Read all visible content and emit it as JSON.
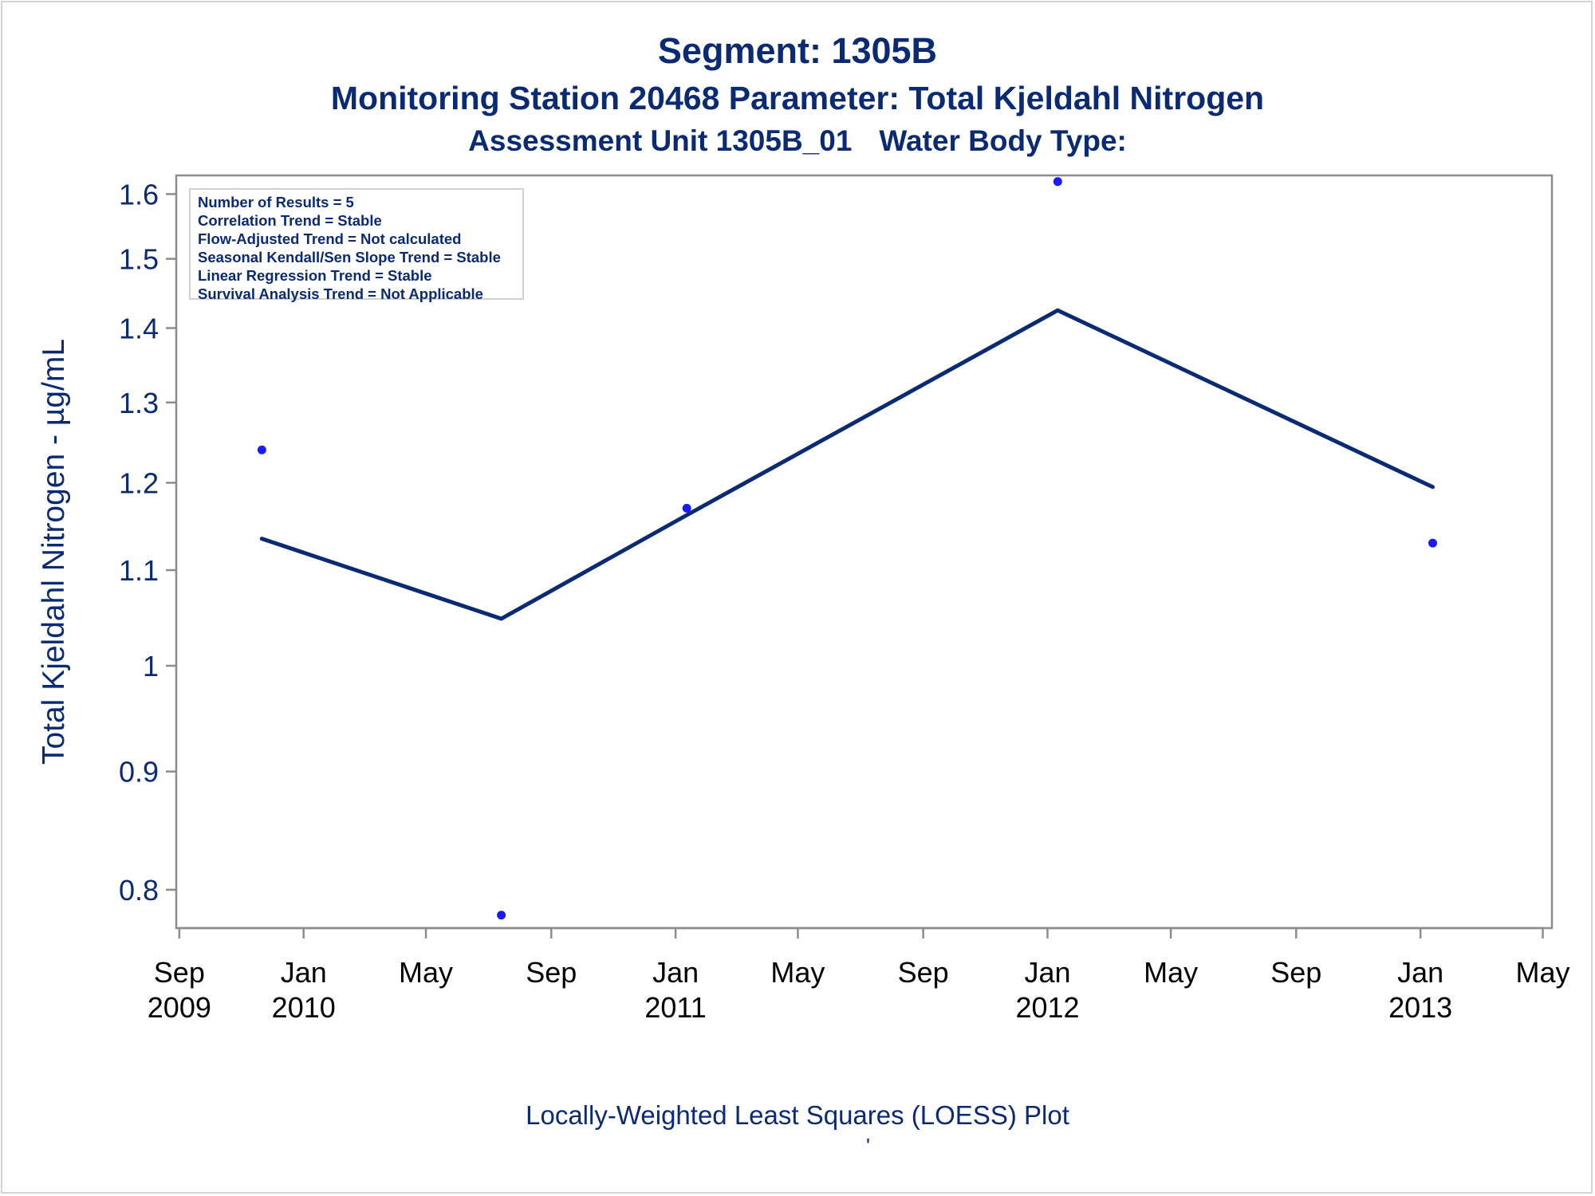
{
  "title": "Segment: 1305B",
  "subtitle": "Monitoring Station 20468 Parameter: Total Kjeldahl Nitrogen",
  "subtitle2_left": "Assessment Unit 1305B_01",
  "subtitle2_right": "Water Body Type:",
  "footnote": "Locally-Weighted Least Squares (LOESS) Plot",
  "footnote_mark": "'",
  "stats": [
    "Number of Results = 5",
    "Correlation Trend = Stable",
    "Flow-Adjusted Trend = Not calculated",
    "Seasonal Kendall/Sen Slope Trend = Stable",
    "Linear Regression Trend = Stable",
    "Survival Analysis Trend = Not Applicable"
  ],
  "colors": {
    "text": "#0a2a74",
    "points": "#1a1aff",
    "loess_line": "#0a2a74",
    "axis": "#8c8c8c"
  },
  "chart_data": {
    "type": "scatter",
    "ylabel": "Total Kjeldahl Nitrogen -  µg/mL",
    "xlabel": "",
    "yscale": "log",
    "ylim": [
      0.77,
      1.63
    ],
    "xlim": [
      "2009-08-29",
      "2013-05-10"
    ],
    "yticks": [
      0.8,
      0.9,
      1,
      1.1,
      1.2,
      1.3,
      1.4,
      1.5,
      1.6
    ],
    "yticklabels": [
      "0.8",
      "0.9",
      "1",
      "1.1",
      "1.2",
      "1.3",
      "1.4",
      "1.5",
      "1.6"
    ],
    "xticks": [
      {
        "date": "2009-09-01",
        "label1": "Sep",
        "label2": "2009"
      },
      {
        "date": "2010-01-01",
        "label1": "Jan",
        "label2": "2010"
      },
      {
        "date": "2010-05-01",
        "label1": "May",
        "label2": ""
      },
      {
        "date": "2010-09-01",
        "label1": "Sep",
        "label2": ""
      },
      {
        "date": "2011-01-01",
        "label1": "Jan",
        "label2": "2011"
      },
      {
        "date": "2011-05-01",
        "label1": "May",
        "label2": ""
      },
      {
        "date": "2011-09-01",
        "label1": "Sep",
        "label2": ""
      },
      {
        "date": "2012-01-01",
        "label1": "Jan",
        "label2": "2012"
      },
      {
        "date": "2012-05-01",
        "label1": "May",
        "label2": ""
      },
      {
        "date": "2012-09-01",
        "label1": "Sep",
        "label2": ""
      },
      {
        "date": "2013-01-01",
        "label1": "Jan",
        "label2": "2013"
      },
      {
        "date": "2013-05-01",
        "label1": "May",
        "label2": ""
      }
    ],
    "points": [
      {
        "x": "2009-11-21",
        "y": 1.24
      },
      {
        "x": "2010-07-14",
        "y": 0.78
      },
      {
        "x": "2011-01-12",
        "y": 1.17
      },
      {
        "x": "2012-01-11",
        "y": 1.62
      },
      {
        "x": "2013-01-13",
        "y": 1.13
      }
    ],
    "loess_line": [
      {
        "x": "2009-11-21",
        "y": 1.135
      },
      {
        "x": "2010-07-14",
        "y": 1.048
      },
      {
        "x": "2011-01-12",
        "y": 1.162
      },
      {
        "x": "2012-01-11",
        "y": 1.425
      },
      {
        "x": "2013-01-13",
        "y": 1.195
      }
    ],
    "grid": false,
    "legend": "top-left"
  }
}
